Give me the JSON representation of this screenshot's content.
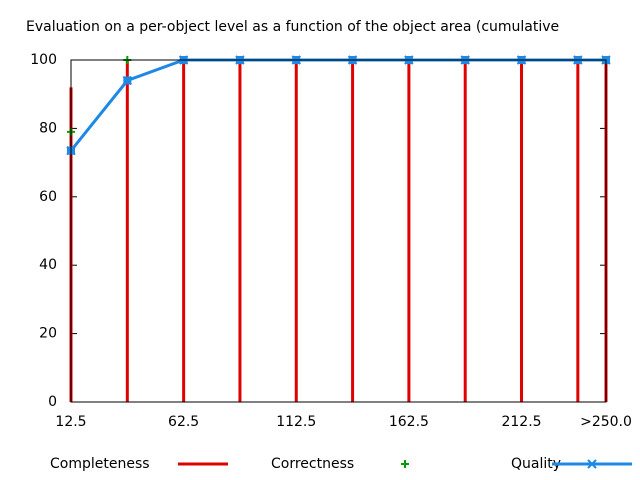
{
  "chart_data": {
    "type": "line",
    "title": "Evaluation on a per-object level as a function of the object area (cumulative",
    "x": [
      12.5,
      37.5,
      62.5,
      87.5,
      112.5,
      137.5,
      162.5,
      187.5,
      212.5,
      237.5,
      250
    ],
    "series": [
      {
        "name": "Completeness",
        "color": "#e00000",
        "style": "impulses",
        "values": [
          92,
          100,
          100,
          100,
          100,
          100,
          100,
          100,
          100,
          100,
          100
        ]
      },
      {
        "name": "Correctness",
        "color": "#00a000",
        "style": "points",
        "values": [
          79,
          100,
          100,
          100,
          100,
          100,
          100,
          100,
          100,
          100,
          100
        ]
      },
      {
        "name": "Quality",
        "color": "#1e88e5",
        "style": "linespoints",
        "values": [
          73.5,
          94,
          100,
          100,
          100,
          100,
          100,
          100,
          100,
          100,
          100
        ]
      }
    ],
    "xlim": [
      12.5,
      250
    ],
    "xticks": [
      12.5,
      62.5,
      112.5,
      162.5,
      212.5,
      {
        "value": 250,
        "label": ">250.0"
      }
    ],
    "ylim": [
      0,
      100
    ],
    "yticks": [
      0,
      20,
      40,
      60,
      80,
      100
    ]
  }
}
